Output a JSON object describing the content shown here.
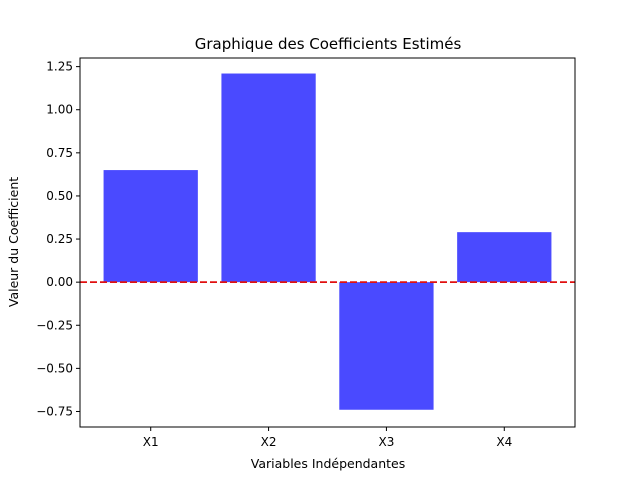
{
  "chart_data": {
    "type": "bar",
    "title": "Graphique des Coefficients Estimés",
    "xlabel": "Variables Indépendantes",
    "ylabel": "Valeur du Coefficient",
    "categories": [
      "X1",
      "X2",
      "X3",
      "X4"
    ],
    "values": [
      0.65,
      1.21,
      -0.74,
      0.29
    ],
    "ylim": [
      -0.84,
      1.3
    ],
    "yticks": [
      -0.75,
      -0.5,
      -0.25,
      0.0,
      0.25,
      0.5,
      0.75,
      1.0,
      1.25
    ],
    "ytick_labels": [
      "−0.75",
      "−0.50",
      "−0.25",
      "0.00",
      "0.25",
      "0.50",
      "0.75",
      "1.00",
      "1.25"
    ],
    "reference_line": {
      "y": 0,
      "style": "dashed"
    },
    "grid": false,
    "legend": "none",
    "colors": {
      "bar": "#4a4aff",
      "reference_line": "#e01010",
      "axes": "#000000"
    }
  }
}
